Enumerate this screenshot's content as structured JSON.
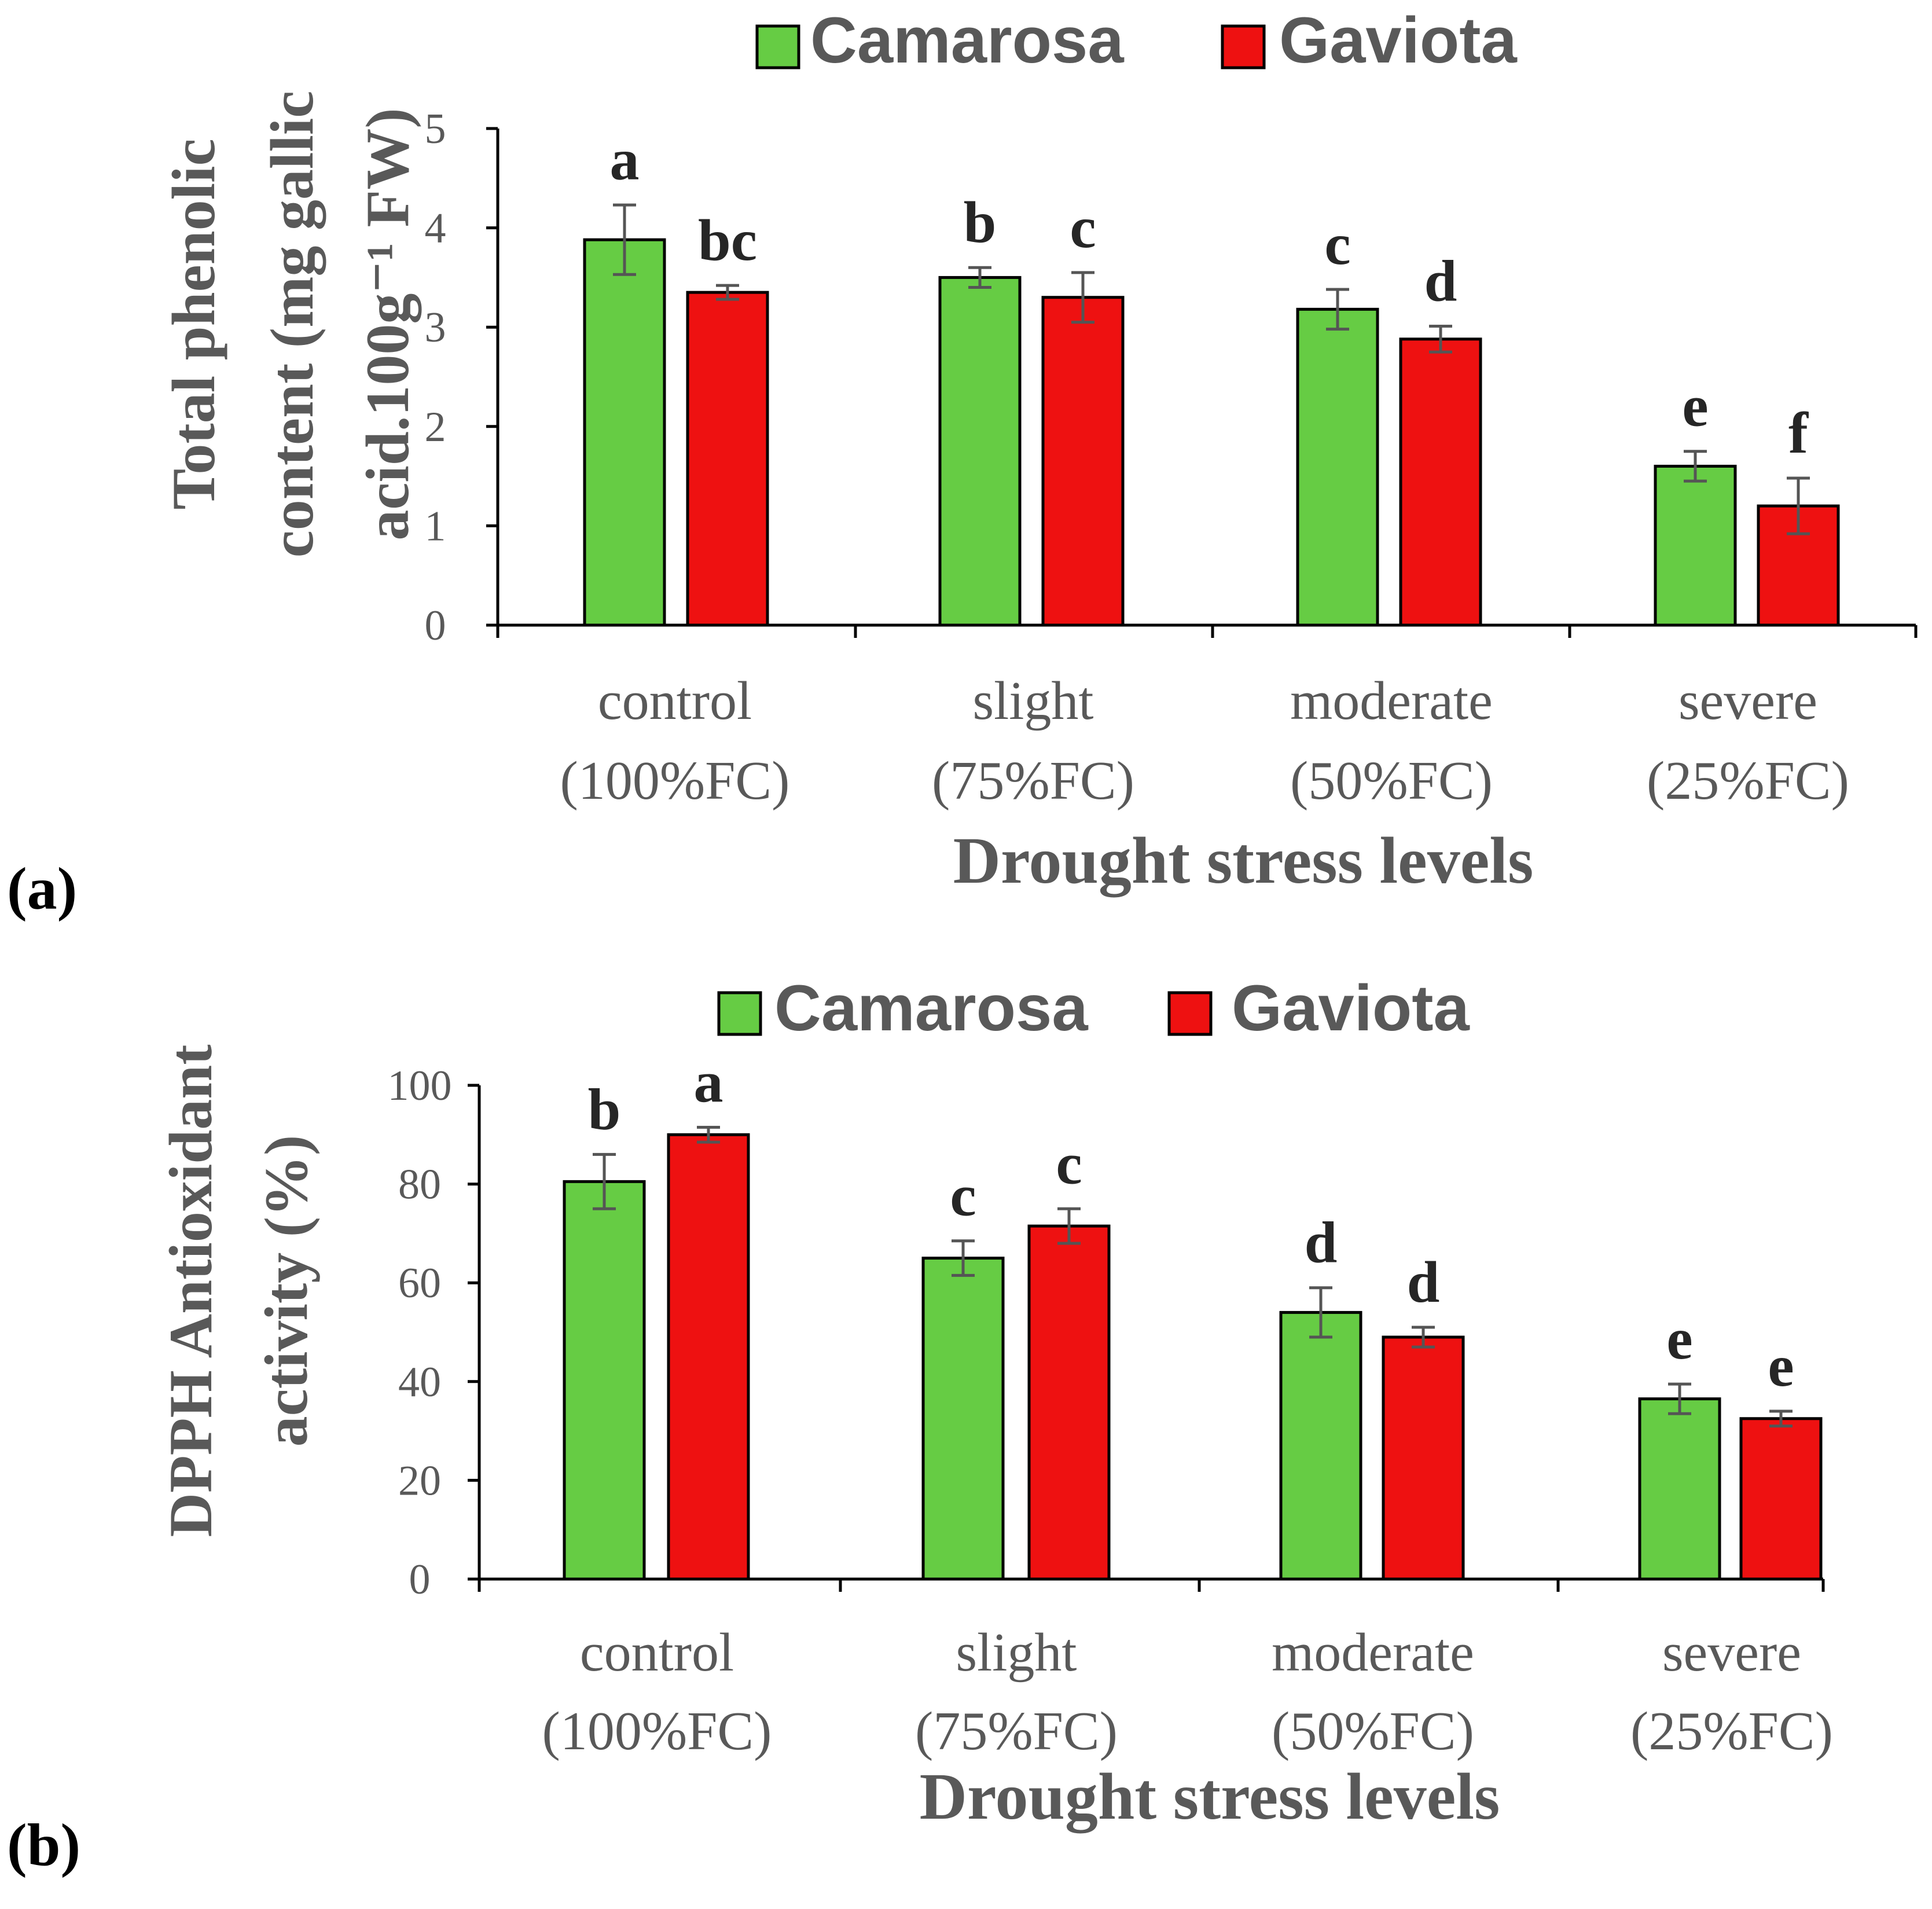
{
  "colors": {
    "camarosa": "#66cc44",
    "gaviota": "#ee1111",
    "axis": "#000000",
    "error": "#555555",
    "text": "#595959"
  },
  "chart_data": [
    {
      "type": "bar",
      "panel_label": "(a)",
      "categories": [
        {
          "line1": "control",
          "line2": "(100%FC)"
        },
        {
          "line1": "slight",
          "line2": "(75%FC)"
        },
        {
          "line1": "moderate",
          "line2": "(50%FC)"
        },
        {
          "line1": "severe",
          "line2": "(25%FC)"
        }
      ],
      "series": [
        {
          "name": "Camarosa",
          "values": [
            3.88,
            3.5,
            3.18,
            1.6
          ],
          "errors": [
            0.35,
            0.1,
            0.2,
            0.15
          ],
          "letters": [
            "a",
            "b",
            "c",
            "e"
          ]
        },
        {
          "name": "Gaviota",
          "values": [
            3.35,
            3.3,
            2.88,
            1.2
          ],
          "errors": [
            0.07,
            0.25,
            0.13,
            0.28
          ],
          "letters": [
            "bc",
            "c",
            "d",
            "f"
          ]
        }
      ],
      "ylim": [
        0,
        5
      ],
      "yticks": [
        0,
        1,
        2,
        3,
        4,
        5
      ],
      "xlabel": "Drought stress levels",
      "ylabel_lines": [
        "Total phenolic",
        "content (mg gallic",
        "acid.100g⁻¹ FW)"
      ],
      "legend": [
        "Camarosa",
        "Gaviota"
      ]
    },
    {
      "type": "bar",
      "panel_label": "(b)",
      "categories": [
        {
          "line1": "control",
          "line2": "(100%FC)"
        },
        {
          "line1": "slight",
          "line2": "(75%FC)"
        },
        {
          "line1": "moderate",
          "line2": "(50%FC)"
        },
        {
          "line1": "severe",
          "line2": "(25%FC)"
        }
      ],
      "series": [
        {
          "name": "Camarosa",
          "values": [
            80.5,
            65,
            54,
            36.5
          ],
          "errors": [
            5.5,
            3.5,
            5,
            3
          ],
          "letters": [
            "b",
            "c",
            "d",
            "e"
          ]
        },
        {
          "name": "Gaviota",
          "values": [
            90,
            71.5,
            49,
            32.5
          ],
          "errors": [
            1.5,
            3.5,
            2,
            1.5
          ],
          "letters": [
            "a",
            "c",
            "d",
            "e"
          ]
        }
      ],
      "ylim": [
        0,
        100
      ],
      "yticks": [
        0,
        20,
        40,
        60,
        80,
        100
      ],
      "xlabel": "Drought stress levels",
      "ylabel_lines": [
        "DPPH Antioxidant",
        "activity (%)"
      ],
      "legend": [
        "Camarosa",
        "Gaviota"
      ]
    }
  ]
}
